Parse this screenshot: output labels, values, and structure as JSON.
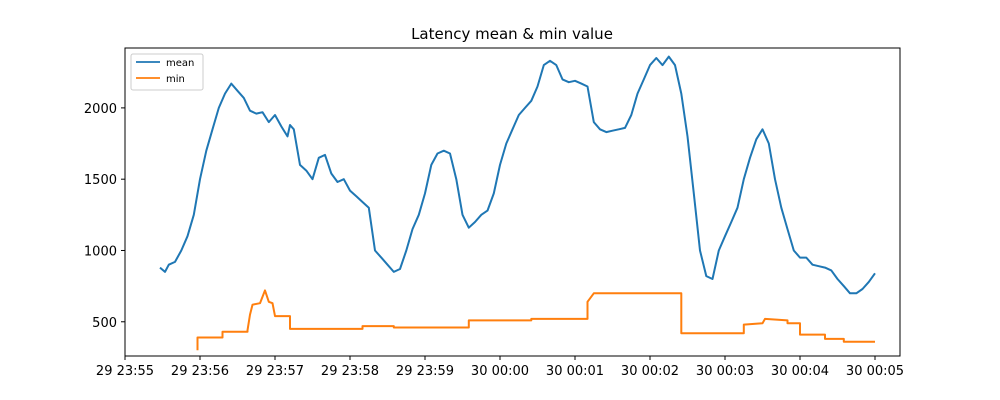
{
  "chart_data": {
    "type": "line",
    "title": "Latency mean & min value",
    "xlabel": "",
    "ylabel": "",
    "x_unit": "time",
    "xlim": [
      "29 23:55:00",
      "30 00:05:20"
    ],
    "ylim": [
      260,
      2420
    ],
    "x_ticks": [
      "29 23:55",
      "29 23:56",
      "29 23:57",
      "29 23:58",
      "29 23:59",
      "30 00:00",
      "30 00:01",
      "30 00:02",
      "30 00:03",
      "30 00:04",
      "30 00:05"
    ],
    "y_ticks": [
      500,
      1000,
      1500,
      2000
    ],
    "grid": false,
    "legend_position": "top-left",
    "colors": {
      "mean": "#1f77b4",
      "min": "#ff7f0e"
    },
    "series": [
      {
        "name": "mean",
        "step": false,
        "points": [
          [
            "29 23:55:28",
            880
          ],
          [
            "29 23:55:32",
            850
          ],
          [
            "29 23:55:35",
            900
          ],
          [
            "29 23:55:40",
            920
          ],
          [
            "29 23:55:45",
            1000
          ],
          [
            "29 23:55:50",
            1100
          ],
          [
            "29 23:55:55",
            1250
          ],
          [
            "29 23:56:00",
            1500
          ],
          [
            "29 23:56:05",
            1700
          ],
          [
            "29 23:56:10",
            1850
          ],
          [
            "29 23:56:15",
            2000
          ],
          [
            "29 23:56:20",
            2100
          ],
          [
            "29 23:56:25",
            2170
          ],
          [
            "29 23:56:30",
            2120
          ],
          [
            "29 23:56:35",
            2070
          ],
          [
            "29 23:56:40",
            1980
          ],
          [
            "29 23:56:45",
            1960
          ],
          [
            "29 23:56:50",
            1970
          ],
          [
            "29 23:56:55",
            1900
          ],
          [
            "29 23:57:00",
            1950
          ],
          [
            "29 23:57:05",
            1870
          ],
          [
            "29 23:57:10",
            1800
          ],
          [
            "29 23:57:12",
            1880
          ],
          [
            "29 23:57:15",
            1850
          ],
          [
            "29 23:57:20",
            1600
          ],
          [
            "29 23:57:25",
            1560
          ],
          [
            "29 23:57:30",
            1500
          ],
          [
            "29 23:57:35",
            1650
          ],
          [
            "29 23:57:40",
            1670
          ],
          [
            "29 23:57:45",
            1540
          ],
          [
            "29 23:57:50",
            1480
          ],
          [
            "29 23:57:55",
            1500
          ],
          [
            "29 23:58:00",
            1420
          ],
          [
            "29 23:58:05",
            1380
          ],
          [
            "29 23:58:10",
            1340
          ],
          [
            "29 23:58:15",
            1300
          ],
          [
            "29 23:58:20",
            1000
          ],
          [
            "29 23:58:25",
            950
          ],
          [
            "29 23:58:30",
            900
          ],
          [
            "29 23:58:35",
            850
          ],
          [
            "29 23:58:40",
            870
          ],
          [
            "29 23:58:45",
            1000
          ],
          [
            "29 23:58:50",
            1150
          ],
          [
            "29 23:58:55",
            1250
          ],
          [
            "29 23:59:00",
            1400
          ],
          [
            "29 23:59:05",
            1600
          ],
          [
            "29 23:59:10",
            1680
          ],
          [
            "29 23:59:15",
            1700
          ],
          [
            "29 23:59:20",
            1680
          ],
          [
            "29 23:59:25",
            1500
          ],
          [
            "29 23:59:30",
            1250
          ],
          [
            "29 23:59:35",
            1160
          ],
          [
            "29 23:59:40",
            1200
          ],
          [
            "29 23:59:45",
            1250
          ],
          [
            "29 23:59:50",
            1280
          ],
          [
            "29 23:59:55",
            1400
          ],
          [
            "30 00:00:00",
            1600
          ],
          [
            "30 00:00:05",
            1750
          ],
          [
            "30 00:00:10",
            1850
          ],
          [
            "30 00:00:15",
            1950
          ],
          [
            "30 00:00:20",
            2000
          ],
          [
            "30 00:00:25",
            2050
          ],
          [
            "30 00:00:30",
            2150
          ],
          [
            "30 00:00:35",
            2300
          ],
          [
            "30 00:00:40",
            2330
          ],
          [
            "30 00:00:45",
            2300
          ],
          [
            "30 00:00:50",
            2200
          ],
          [
            "30 00:00:55",
            2180
          ],
          [
            "30 00:01:00",
            2190
          ],
          [
            "30 00:01:05",
            2170
          ],
          [
            "30 00:01:10",
            2150
          ],
          [
            "30 00:01:15",
            1900
          ],
          [
            "30 00:01:20",
            1850
          ],
          [
            "30 00:01:25",
            1830
          ],
          [
            "30 00:01:30",
            1840
          ],
          [
            "30 00:01:35",
            1850
          ],
          [
            "30 00:01:40",
            1860
          ],
          [
            "30 00:01:45",
            1950
          ],
          [
            "30 00:01:50",
            2100
          ],
          [
            "30 00:01:55",
            2200
          ],
          [
            "30 00:02:00",
            2300
          ],
          [
            "30 00:02:05",
            2350
          ],
          [
            "30 00:02:10",
            2300
          ],
          [
            "30 00:02:15",
            2360
          ],
          [
            "30 00:02:20",
            2300
          ],
          [
            "30 00:02:25",
            2100
          ],
          [
            "30 00:02:30",
            1800
          ],
          [
            "30 00:02:35",
            1400
          ],
          [
            "30 00:02:40",
            1000
          ],
          [
            "30 00:02:45",
            820
          ],
          [
            "30 00:02:50",
            800
          ],
          [
            "30 00:02:55",
            1000
          ],
          [
            "30 00:03:00",
            1100
          ],
          [
            "30 00:03:05",
            1200
          ],
          [
            "30 00:03:10",
            1300
          ],
          [
            "30 00:03:15",
            1500
          ],
          [
            "30 00:03:20",
            1650
          ],
          [
            "30 00:03:25",
            1780
          ],
          [
            "30 00:03:30",
            1850
          ],
          [
            "30 00:03:35",
            1750
          ],
          [
            "30 00:03:40",
            1500
          ],
          [
            "30 00:03:45",
            1300
          ],
          [
            "30 00:03:50",
            1150
          ],
          [
            "30 00:03:55",
            1000
          ],
          [
            "30 00:04:00",
            950
          ],
          [
            "30 00:04:05",
            950
          ],
          [
            "30 00:04:10",
            900
          ],
          [
            "30 00:04:15",
            890
          ],
          [
            "30 00:04:20",
            880
          ],
          [
            "30 00:04:25",
            860
          ],
          [
            "30 00:04:30",
            800
          ],
          [
            "30 00:04:35",
            750
          ],
          [
            "30 00:04:40",
            700
          ],
          [
            "30 00:04:45",
            700
          ],
          [
            "30 00:04:50",
            730
          ],
          [
            "30 00:04:55",
            780
          ],
          [
            "30 00:05:00",
            840
          ]
        ]
      },
      {
        "name": "min",
        "step": true,
        "points": [
          [
            "29 23:55:58",
            300
          ],
          [
            "29 23:55:58",
            390
          ],
          [
            "29 23:56:18",
            390
          ],
          [
            "29 23:56:18",
            430
          ],
          [
            "29 23:56:38",
            430
          ],
          [
            "29 23:56:38",
            440
          ],
          [
            "29 23:56:40",
            550
          ],
          [
            "29 23:56:42",
            620
          ],
          [
            "29 23:56:48",
            630
          ],
          [
            "29 23:56:52",
            720
          ],
          [
            "29 23:56:55",
            640
          ],
          [
            "29 23:56:58",
            630
          ],
          [
            "29 23:57:00",
            540
          ],
          [
            "29 23:57:12",
            540
          ],
          [
            "29 23:57:12",
            450
          ],
          [
            "29 23:58:10",
            450
          ],
          [
            "29 23:58:10",
            470
          ],
          [
            "29 23:58:35",
            470
          ],
          [
            "29 23:58:35",
            460
          ],
          [
            "29 23:59:35",
            460
          ],
          [
            "29 23:59:35",
            510
          ],
          [
            "30 00:00:25",
            510
          ],
          [
            "30 00:00:25",
            520
          ],
          [
            "30 00:01:10",
            520
          ],
          [
            "30 00:01:10",
            640
          ],
          [
            "30 00:01:15",
            700
          ],
          [
            "30 00:02:25",
            700
          ],
          [
            "30 00:02:25",
            420
          ],
          [
            "30 00:03:15",
            420
          ],
          [
            "30 00:03:15",
            480
          ],
          [
            "30 00:03:30",
            490
          ],
          [
            "30 00:03:32",
            520
          ],
          [
            "30 00:03:50",
            510
          ],
          [
            "30 00:03:50",
            490
          ],
          [
            "30 00:04:00",
            490
          ],
          [
            "30 00:04:00",
            410
          ],
          [
            "30 00:04:20",
            410
          ],
          [
            "30 00:04:20",
            380
          ],
          [
            "30 00:04:35",
            380
          ],
          [
            "30 00:04:35",
            360
          ],
          [
            "30 00:05:00",
            360
          ]
        ]
      }
    ]
  }
}
